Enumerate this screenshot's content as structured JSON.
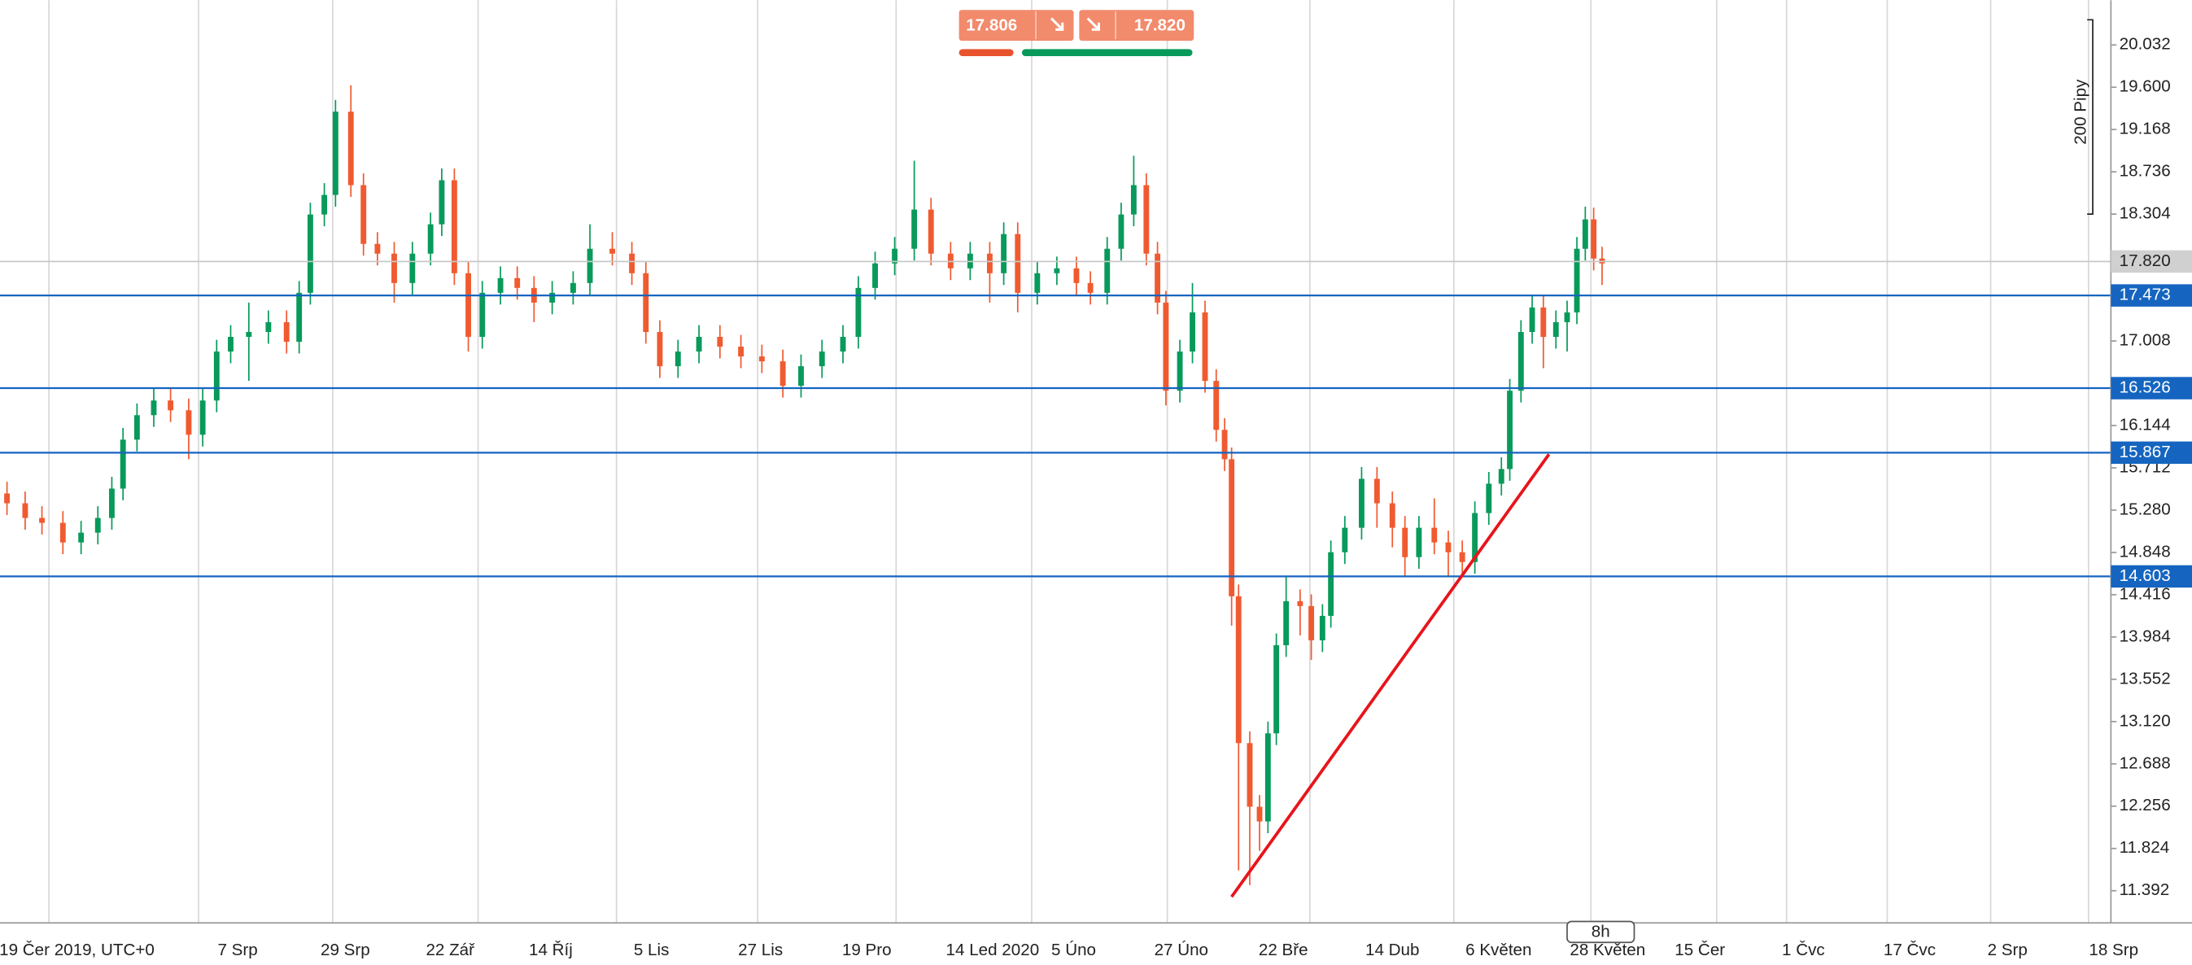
{
  "chart_data": {
    "type": "candlestick",
    "ylim": [
      11.064,
      20.489
    ],
    "yticks": [
      20.032,
      {
        "value": 19.6,
        "label": "19.600"
      },
      19.168,
      18.736,
      18.304,
      17.008,
      16.144,
      15.712,
      {
        "value": 15.28,
        "label": "15.280"
      },
      14.848,
      14.416,
      13.984,
      13.552,
      {
        "value": 13.12,
        "label": "13.120"
      },
      12.688,
      12.256,
      11.824,
      11.392
    ],
    "xlim": [
      0,
      302
    ],
    "xticks": [
      {
        "value": 11,
        "label": "19 Čer 2019, UTC+0"
      },
      {
        "value": 34,
        "label": "7 Srp"
      },
      {
        "value": 49.4,
        "label": "29 Srp"
      },
      {
        "value": 64.4,
        "label": "22 Zář"
      },
      {
        "value": 78.8,
        "label": "14 Říj"
      },
      {
        "value": 93.2,
        "label": "5 Lis"
      },
      {
        "value": 108.8,
        "label": "27 Lis"
      },
      {
        "value": 124,
        "label": "19 Pro"
      },
      {
        "value": 142,
        "label": "14 Led 2020"
      },
      {
        "value": 153.6,
        "label": "5 Úno"
      },
      {
        "value": 169,
        "label": "27 Úno"
      },
      {
        "value": 183.6,
        "label": "22 Bře"
      },
      {
        "value": 199.2,
        "label": "14 Dub"
      },
      {
        "value": 214.4,
        "label": "6 Květen"
      },
      {
        "value": 230,
        "label": "28 Květen"
      },
      {
        "value": 243.2,
        "label": "15 Čer"
      },
      {
        "value": 258,
        "label": "1 Čvc"
      },
      {
        "value": 273.2,
        "label": "17 Čvc"
      },
      {
        "value": 287.2,
        "label": "2 Srp"
      },
      {
        "value": 302.4,
        "label": "18 Srp"
      }
    ],
    "xgrid": [
      7,
      28.4,
      47.6,
      68.4,
      88.2,
      108.4,
      128.2,
      147.6,
      167,
      187.4,
      208,
      227.6,
      245.6,
      255.6,
      270,
      284.8,
      298.8
    ],
    "up_color": "#089a5b",
    "down_color": "#f05a30",
    "candles": {
      "x": [
        1.0,
        3.6,
        6.0,
        9.0,
        11.6,
        14.0,
        16.0,
        17.6,
        19.6,
        22.0,
        24.4,
        27.0,
        29.0,
        31.0,
        33.0,
        35.6,
        38.4,
        41.0,
        42.8,
        44.4,
        46.4,
        48.0,
        50.2,
        52.0,
        54.0,
        56.4,
        59.0,
        61.6,
        63.2,
        65.0,
        67.0,
        69.0,
        71.6,
        74.0,
        76.4,
        79.0,
        82.0,
        84.4,
        87.6,
        90.4,
        92.4,
        94.4,
        97.0,
        100.0,
        103.0,
        106.0,
        109.0,
        112.0,
        114.6,
        117.6,
        120.6,
        122.8,
        125.2,
        128.0,
        130.8,
        133.2,
        136.0,
        138.8,
        141.6,
        143.6,
        145.6,
        148.4,
        151.2,
        154.0,
        156.0,
        158.4,
        160.4,
        162.2,
        164.0,
        165.6,
        166.8,
        168.8,
        170.6,
        172.4,
        174.0,
        175.2,
        176.2,
        177.2,
        178.8,
        180.2,
        181.4,
        182.6,
        184.0,
        186.0,
        187.6,
        189.2,
        190.4,
        192.4,
        194.8,
        197.0,
        199.2,
        201.0,
        203.0,
        205.2,
        207.2,
        209.2,
        211.0,
        213.0,
        214.8,
        216.0,
        217.6,
        219.2,
        220.8,
        222.6,
        224.2,
        225.6,
        226.8,
        228.0,
        229.2
      ],
      "open": [
        15.45,
        15.35,
        15.2,
        15.15,
        14.95,
        15.05,
        15.2,
        15.5,
        16.0,
        16.25,
        16.4,
        16.3,
        16.05,
        16.4,
        16.9,
        17.05,
        17.1,
        17.2,
        17.0,
        17.5,
        18.3,
        18.5,
        19.35,
        18.6,
        18.0,
        17.9,
        17.6,
        17.9,
        18.2,
        18.65,
        17.7,
        17.05,
        17.5,
        17.65,
        17.55,
        17.4,
        17.5,
        17.6,
        17.95,
        17.9,
        17.7,
        17.1,
        16.75,
        16.9,
        17.05,
        16.95,
        16.85,
        16.8,
        16.55,
        16.75,
        16.9,
        17.05,
        17.55,
        17.8,
        17.95,
        18.35,
        17.9,
        17.75,
        17.9,
        17.7,
        18.1,
        17.5,
        17.7,
        17.75,
        17.6,
        17.5,
        17.95,
        18.3,
        18.6,
        17.9,
        17.4,
        16.5,
        16.9,
        17.3,
        16.6,
        16.1,
        15.8,
        14.4,
        12.9,
        12.25,
        12.1,
        13.0,
        13.9,
        14.35,
        14.3,
        13.95,
        14.2,
        14.85,
        15.1,
        15.6,
        15.35,
        15.1,
        14.8,
        15.1,
        14.95,
        14.85,
        14.75,
        15.25,
        15.55,
        15.7,
        16.5,
        17.1,
        17.35,
        17.05,
        17.2,
        17.3,
        17.95,
        18.25,
        17.85
      ],
      "high": [
        15.57,
        15.47,
        15.32,
        15.27,
        15.17,
        15.32,
        15.62,
        16.12,
        16.37,
        16.52,
        16.52,
        16.42,
        16.52,
        17.02,
        17.17,
        17.4,
        17.32,
        17.32,
        17.62,
        18.42,
        18.62,
        19.47,
        19.62,
        18.72,
        18.12,
        18.02,
        18.02,
        18.32,
        18.77,
        18.77,
        17.82,
        17.62,
        17.77,
        17.77,
        17.67,
        17.62,
        17.72,
        18.2,
        18.12,
        18.02,
        17.82,
        17.22,
        17.02,
        17.17,
        17.17,
        17.07,
        16.97,
        16.92,
        16.87,
        17.02,
        17.17,
        17.67,
        17.92,
        18.07,
        18.85,
        18.47,
        18.02,
        18.02,
        18.02,
        18.22,
        18.22,
        17.82,
        17.87,
        17.87,
        17.72,
        18.07,
        18.42,
        18.9,
        18.72,
        18.02,
        17.52,
        17.02,
        17.6,
        17.42,
        16.72,
        16.22,
        15.92,
        14.52,
        13.02,
        12.37,
        13.12,
        14.02,
        14.6,
        14.47,
        14.42,
        14.32,
        14.97,
        15.22,
        15.72,
        15.72,
        15.47,
        15.22,
        15.22,
        15.4,
        15.07,
        14.97,
        15.37,
        15.67,
        15.82,
        16.62,
        17.22,
        17.47,
        17.47,
        17.32,
        17.42,
        18.07,
        18.38,
        18.37,
        17.97
      ],
      "low": [
        15.23,
        15.08,
        15.03,
        14.83,
        14.83,
        14.93,
        15.08,
        15.38,
        15.88,
        16.13,
        16.18,
        15.8,
        15.93,
        16.28,
        16.78,
        16.6,
        16.98,
        16.88,
        16.88,
        17.38,
        18.18,
        18.38,
        18.48,
        17.88,
        17.78,
        17.4,
        17.48,
        17.78,
        18.08,
        17.58,
        16.9,
        16.93,
        17.38,
        17.43,
        17.2,
        17.28,
        17.38,
        17.48,
        17.78,
        17.58,
        16.98,
        16.63,
        16.63,
        16.78,
        16.83,
        16.73,
        16.68,
        16.43,
        16.43,
        16.63,
        16.78,
        16.93,
        17.43,
        17.68,
        17.83,
        17.78,
        17.63,
        17.63,
        17.4,
        17.58,
        17.3,
        17.38,
        17.58,
        17.48,
        17.38,
        17.38,
        17.83,
        18.18,
        17.78,
        17.28,
        16.35,
        16.38,
        16.78,
        16.48,
        15.98,
        15.68,
        14.1,
        11.6,
        11.45,
        11.8,
        11.98,
        12.88,
        13.78,
        14.0,
        13.75,
        13.83,
        14.08,
        14.73,
        14.98,
        15.1,
        14.9,
        14.6,
        14.68,
        14.83,
        14.6,
        14.63,
        14.63,
        15.13,
        15.43,
        15.58,
        16.38,
        16.98,
        16.73,
        16.93,
        16.9,
        17.18,
        17.83,
        17.73,
        17.58
      ],
      "close": [
        15.35,
        15.2,
        15.15,
        14.95,
        15.05,
        15.2,
        15.5,
        16.0,
        16.25,
        16.4,
        16.3,
        16.05,
        16.4,
        16.9,
        17.05,
        17.1,
        17.2,
        17.0,
        17.5,
        18.3,
        18.5,
        19.35,
        18.6,
        18.0,
        17.9,
        17.6,
        17.9,
        18.2,
        18.65,
        17.7,
        17.05,
        17.5,
        17.65,
        17.55,
        17.4,
        17.5,
        17.6,
        17.95,
        17.9,
        17.7,
        17.1,
        16.75,
        16.9,
        17.05,
        16.95,
        16.85,
        16.8,
        16.55,
        16.75,
        16.9,
        17.05,
        17.55,
        17.8,
        17.95,
        18.35,
        17.9,
        17.75,
        17.9,
        17.7,
        18.1,
        17.5,
        17.7,
        17.75,
        17.6,
        17.5,
        17.95,
        18.3,
        18.6,
        17.9,
        17.4,
        16.5,
        16.9,
        17.3,
        16.6,
        16.1,
        15.8,
        14.4,
        12.9,
        12.25,
        12.1,
        13.0,
        13.9,
        14.35,
        14.3,
        13.95,
        14.2,
        14.85,
        15.1,
        15.6,
        15.35,
        15.1,
        14.8,
        15.1,
        14.95,
        14.85,
        14.75,
        15.25,
        15.55,
        15.7,
        16.5,
        17.1,
        17.35,
        17.05,
        17.2,
        17.3,
        17.95,
        18.25,
        17.85,
        17.8
      ]
    },
    "levels": [
      17.473,
      16.526,
      15.867,
      14.603
    ],
    "level_color": "#1565c0",
    "last_price": {
      "value": 17.82,
      "label": "17.820"
    },
    "trendline": {
      "x": [
        176.2,
        221.6
      ],
      "y": [
        11.33,
        15.85
      ],
      "color": "#e8141c"
    },
    "quote": {
      "sell": "17.806",
      "buy": "17.820"
    },
    "range_label": "200 Pipy",
    "timeframe": "8h"
  }
}
